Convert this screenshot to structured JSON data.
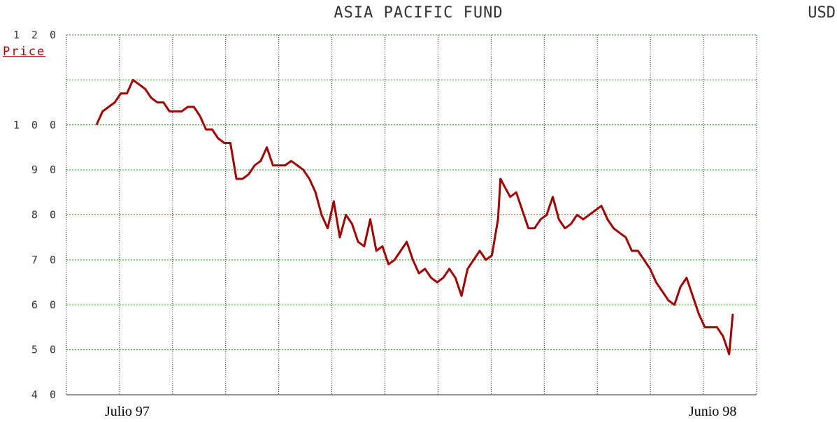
{
  "chart_data": {
    "type": "line",
    "title": "ASIA PACIFIC FUND",
    "currency": "USD",
    "ylabel": "Price",
    "ylim": [
      40,
      120
    ],
    "yticks": [
      40,
      50,
      60,
      70,
      80,
      90,
      100,
      120
    ],
    "x_start_label": "Julio 97",
    "x_end_label": "Junio 98",
    "grid": true,
    "line_color": "#a00000",
    "grid_color": "#00a000",
    "series": [
      {
        "values": [
          [
            0.0,
            100
          ],
          [
            0.5,
            103
          ],
          [
            1.0,
            104
          ],
          [
            1.5,
            105
          ],
          [
            2.0,
            107
          ],
          [
            2.5,
            107
          ],
          [
            3.0,
            110
          ],
          [
            3.5,
            109
          ],
          [
            4.0,
            108
          ],
          [
            4.5,
            106
          ],
          [
            5.0,
            105
          ],
          [
            5.5,
            105
          ],
          [
            6.0,
            103
          ],
          [
            6.5,
            103
          ],
          [
            7.0,
            103
          ],
          [
            7.5,
            104
          ],
          [
            8.0,
            104
          ],
          [
            8.5,
            102
          ],
          [
            9.0,
            99
          ],
          [
            9.5,
            99
          ],
          [
            10.0,
            97
          ],
          [
            10.5,
            96
          ],
          [
            11.0,
            96
          ],
          [
            11.5,
            88
          ],
          [
            12.0,
            88
          ],
          [
            12.5,
            89
          ],
          [
            13.0,
            91
          ],
          [
            13.5,
            92
          ],
          [
            14.0,
            95
          ],
          [
            14.5,
            91
          ],
          [
            15.0,
            91
          ],
          [
            15.5,
            91
          ],
          [
            16.0,
            92
          ],
          [
            16.5,
            91
          ],
          [
            17.0,
            90
          ],
          [
            17.5,
            88
          ],
          [
            18.0,
            85
          ],
          [
            18.5,
            80
          ],
          [
            19.0,
            77
          ],
          [
            19.5,
            83
          ],
          [
            20.0,
            75
          ],
          [
            20.5,
            80
          ],
          [
            21.0,
            78
          ],
          [
            21.5,
            74
          ],
          [
            22.0,
            73
          ],
          [
            22.5,
            79
          ],
          [
            23.0,
            72
          ],
          [
            23.5,
            73
          ],
          [
            24.0,
            69
          ],
          [
            24.5,
            70
          ],
          [
            25.0,
            72
          ],
          [
            25.5,
            74
          ],
          [
            26.0,
            70
          ],
          [
            26.5,
            67
          ],
          [
            27.0,
            68
          ],
          [
            27.5,
            66
          ],
          [
            28.0,
            65
          ],
          [
            28.5,
            66
          ],
          [
            29.0,
            68
          ],
          [
            29.5,
            66
          ],
          [
            30.0,
            62
          ],
          [
            30.5,
            68
          ],
          [
            31.0,
            70
          ],
          [
            31.5,
            72
          ],
          [
            32.0,
            70
          ],
          [
            32.5,
            71
          ],
          [
            33.0,
            79
          ],
          [
            33.2,
            88
          ],
          [
            33.6,
            86
          ],
          [
            34.0,
            84
          ],
          [
            34.5,
            85
          ],
          [
            35.0,
            81
          ],
          [
            35.5,
            77
          ],
          [
            36.0,
            77
          ],
          [
            36.5,
            79
          ],
          [
            37.0,
            80
          ],
          [
            37.5,
            84
          ],
          [
            38.0,
            79
          ],
          [
            38.5,
            77
          ],
          [
            39.0,
            78
          ],
          [
            39.5,
            80
          ],
          [
            40.0,
            79
          ],
          [
            40.5,
            80
          ],
          [
            41.0,
            81
          ],
          [
            41.5,
            82
          ],
          [
            42.0,
            79
          ],
          [
            42.5,
            77
          ],
          [
            43.0,
            76
          ],
          [
            43.5,
            75
          ],
          [
            44.0,
            72
          ],
          [
            44.5,
            72
          ],
          [
            45.0,
            70
          ],
          [
            45.5,
            68
          ],
          [
            46.0,
            65
          ],
          [
            46.5,
            63
          ],
          [
            47.0,
            61
          ],
          [
            47.5,
            60
          ],
          [
            48.0,
            64
          ],
          [
            48.5,
            66
          ],
          [
            49.0,
            62
          ],
          [
            49.5,
            58
          ],
          [
            50.0,
            55
          ],
          [
            50.5,
            55
          ],
          [
            51.0,
            55
          ],
          [
            51.5,
            53
          ],
          [
            52.0,
            49
          ],
          [
            52.3,
            58
          ]
        ]
      }
    ]
  }
}
